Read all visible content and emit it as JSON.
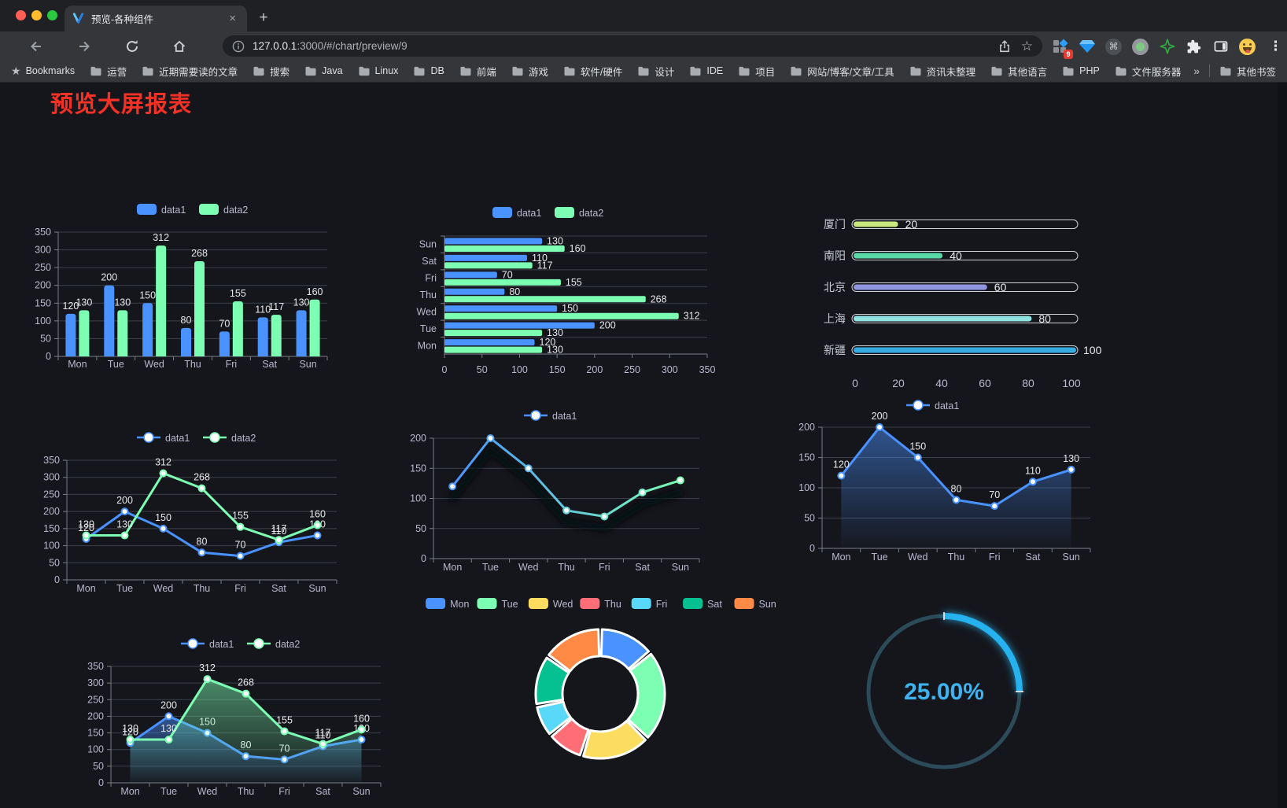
{
  "window": {
    "tab": {
      "title": "预览-各种组件",
      "close_glyph": "×",
      "new_tab_glyph": "+"
    },
    "nav": {
      "back": "back",
      "forward": "forward",
      "reload": "reload",
      "home": "home"
    },
    "url": {
      "host": "127.0.0.1",
      "path": ":3000/#/chart/preview/9",
      "star_glyph": "☆"
    },
    "extensions": {
      "badge": "9",
      "command_glyph": "⌘",
      "menu_glyph": "⋮"
    },
    "bookmarks": {
      "label": "Bookmarks",
      "star_glyph": "★",
      "items": [
        "运营",
        "近期需要读的文章",
        "搜索",
        "Java",
        "Linux",
        "DB",
        "前端",
        "游戏",
        "软件/硬件",
        "设计",
        "IDE",
        "项目",
        "网站/博客/文章/工具",
        "资讯未整理",
        "其他语言",
        "PHP",
        "文件服务器"
      ],
      "overflow_glyph": "»",
      "other_label": "其他书签"
    }
  },
  "page": {
    "title": "预览大屏报表",
    "title_color": "#f53126",
    "background": "#15161c"
  },
  "chart_data": [
    {
      "id": "bar-grouped",
      "type": "bar",
      "legend_position": "top",
      "value_labels": true,
      "categories": [
        "Mon",
        "Tue",
        "Wed",
        "Thu",
        "Fri",
        "Sat",
        "Sun"
      ],
      "series": [
        {
          "name": "data1",
          "color": "#4992ff",
          "values": [
            120,
            200,
            150,
            80,
            70,
            110,
            130
          ]
        },
        {
          "name": "data2",
          "color": "#7cffb2",
          "values": [
            130,
            130,
            312,
            268,
            155,
            117,
            160
          ]
        }
      ],
      "ylim": [
        0,
        350
      ],
      "ytick_step": 50
    },
    {
      "id": "bar-horizontal",
      "type": "bar",
      "orientation": "horizontal",
      "legend_position": "top",
      "value_labels": true,
      "categories": [
        "Mon",
        "Tue",
        "Wed",
        "Thu",
        "Fri",
        "Sat",
        "Sun"
      ],
      "display_order_top_to_bottom": [
        "Sun",
        "Sat",
        "Fri",
        "Thu",
        "Wed",
        "Tue",
        "Mon"
      ],
      "series": [
        {
          "name": "data1",
          "color": "#4992ff",
          "values": [
            120,
            200,
            150,
            80,
            70,
            110,
            130
          ]
        },
        {
          "name": "data2",
          "color": "#7cffb2",
          "values": [
            130,
            130,
            312,
            268,
            155,
            117,
            160
          ]
        }
      ],
      "xlim": [
        0,
        350
      ],
      "xticks": [
        0,
        50,
        100,
        150,
        200,
        250,
        300,
        350
      ]
    },
    {
      "id": "progress-bars",
      "type": "bar",
      "subtype": "progress",
      "rows": [
        {
          "label": "厦门",
          "value": 20,
          "color": "#cbe87f"
        },
        {
          "label": "南阳",
          "value": 40,
          "color": "#58d9a6"
        },
        {
          "label": "北京",
          "value": 60,
          "color": "#8f95de"
        },
        {
          "label": "上海",
          "value": 80,
          "color": "#8fe3e0"
        },
        {
          "label": "新疆",
          "value": 100,
          "color": "#36abe0"
        }
      ],
      "xlim": [
        0,
        100
      ],
      "xticks": [
        0,
        20,
        40,
        60,
        80,
        100
      ]
    },
    {
      "id": "line-two-series",
      "type": "line",
      "legend_position": "top",
      "value_labels": true,
      "categories": [
        "Mon",
        "Tue",
        "Wed",
        "Thu",
        "Fri",
        "Sat",
        "Sun"
      ],
      "series": [
        {
          "name": "data1",
          "color": "#4992ff",
          "values": [
            120,
            200,
            150,
            80,
            70,
            110,
            130
          ]
        },
        {
          "name": "data2",
          "color": "#7cffb2",
          "values": [
            130,
            130,
            312,
            268,
            155,
            117,
            160
          ]
        }
      ],
      "ylim": [
        0,
        350
      ],
      "ytick_step": 50
    },
    {
      "id": "line-gradient",
      "type": "line",
      "legend_position": "top",
      "value_labels": false,
      "categories": [
        "Mon",
        "Tue",
        "Wed",
        "Thu",
        "Fri",
        "Sat",
        "Sun"
      ],
      "series": [
        {
          "name": "data1",
          "color": "#4992ff",
          "color_gradient": [
            "#4992ff",
            "#7cffb2"
          ],
          "shadow": true,
          "values": [
            120,
            200,
            150,
            80,
            70,
            110,
            130
          ]
        }
      ],
      "ylim": [
        0,
        200
      ],
      "ytick_step": 50
    },
    {
      "id": "area-blue",
      "type": "area",
      "legend_position": "top",
      "value_labels": true,
      "categories": [
        "Mon",
        "Tue",
        "Wed",
        "Thu",
        "Fri",
        "Sat",
        "Sun"
      ],
      "series": [
        {
          "name": "data1",
          "color": "#4992ff",
          "area": true,
          "values": [
            120,
            200,
            150,
            80,
            70,
            110,
            130
          ]
        }
      ],
      "ylim": [
        0,
        200
      ],
      "ytick_step": 50
    },
    {
      "id": "area-two",
      "type": "area",
      "legend_position": "top",
      "value_labels": true,
      "categories": [
        "Mon",
        "Tue",
        "Wed",
        "Thu",
        "Fri",
        "Sat",
        "Sun"
      ],
      "series": [
        {
          "name": "data1",
          "color": "#4992ff",
          "area": true,
          "values": [
            120,
            200,
            150,
            80,
            70,
            110,
            130
          ]
        },
        {
          "name": "data2",
          "color": "#7cffb2",
          "area": true,
          "values": [
            130,
            130,
            312,
            268,
            155,
            117,
            160
          ]
        }
      ],
      "ylim": [
        0,
        350
      ],
      "ytick_step": 50
    },
    {
      "id": "donut",
      "type": "pie",
      "legend_position": "top",
      "inner_radius_ratio": 0.585,
      "items": [
        {
          "name": "Mon",
          "value": 120,
          "color": "#4992ff"
        },
        {
          "name": "Tue",
          "value": 200,
          "color": "#7cffb2"
        },
        {
          "name": "Wed",
          "value": 150,
          "color": "#fddd60"
        },
        {
          "name": "Thu",
          "value": 80,
          "color": "#ff6e76"
        },
        {
          "name": "Fri",
          "value": 70,
          "color": "#58d9f9"
        },
        {
          "name": "Sat",
          "value": 110,
          "color": "#05c091"
        },
        {
          "name": "Sun",
          "value": 130,
          "color": "#ff8a45"
        }
      ]
    },
    {
      "id": "gauge",
      "type": "gauge",
      "value_percent": 25,
      "display_text": "25.00%",
      "progress_color": "#27b2ee",
      "track_color": "#2b4b58",
      "text_color": "#3fb3ef"
    }
  ]
}
